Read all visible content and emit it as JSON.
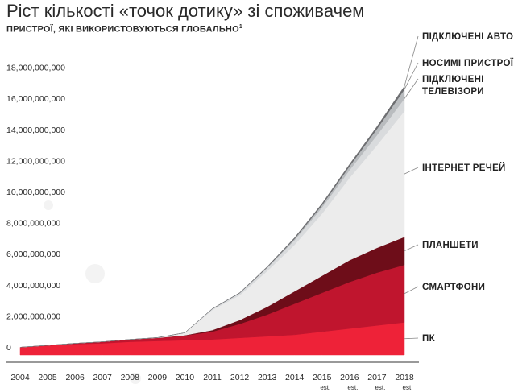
{
  "title": "Ріст кількості «точок дотику» зі споживачем",
  "subtitle": "ПРИСТРОЇ, ЯКІ ВИКОРИСТОВУЮТЬСЯ ГЛОБАЛЬНО",
  "footnote": "1",
  "chart_data": {
    "type": "area",
    "stacked": true,
    "title": "Ріст кількості «точок дотику» зі споживачем",
    "subtitle": "ПРИСТРОЇ, ЯКІ ВИКОРИСТОВУЮТЬСЯ ГЛОБАЛЬНО",
    "x": [
      "2004",
      "2005",
      "2006",
      "2007",
      "2008",
      "2009",
      "2010",
      "2011",
      "2012",
      "2013",
      "2014",
      "2015",
      "2016",
      "2017",
      "2018"
    ],
    "x_notes": [
      "",
      "",
      "",
      "",
      "",
      "",
      "",
      "",
      "",
      "",
      "",
      "est.",
      "est.",
      "est.",
      "est."
    ],
    "ylim": [
      0,
      19000000000
    ],
    "yticks": [
      0,
      2000000000,
      4000000000,
      6000000000,
      8000000000,
      10000000000,
      12000000000,
      14000000000,
      16000000000,
      18000000000
    ],
    "ytick_labels": [
      "0",
      "2,000,000,000",
      "4,000,000,000",
      "6,000,000,000",
      "8,000,000,000",
      "10,000,000,000",
      "12,000,000,000",
      "14,000,000,000",
      "16,000,000,000",
      "18,000,000,000"
    ],
    "series": [
      {
        "name": "ПК",
        "color": "#ee2238",
        "values": [
          500000000,
          600000000,
          700000000,
          750000000,
          850000000,
          900000000,
          950000000,
          1000000000,
          1100000000,
          1200000000,
          1300000000,
          1500000000,
          1700000000,
          1900000000,
          2100000000
        ]
      },
      {
        "name": "СМАРТФОНИ",
        "color": "#c0152e",
        "values": [
          0,
          20000000,
          50000000,
          100000000,
          150000000,
          200000000,
          300000000,
          500000000,
          900000000,
          1400000000,
          2000000000,
          2500000000,
          3000000000,
          3400000000,
          3700000000
        ]
      },
      {
        "name": "ПЛАНШЕТИ",
        "color": "#6e0d19",
        "values": [
          0,
          0,
          0,
          0,
          0,
          0,
          20000000,
          100000000,
          250000000,
          500000000,
          800000000,
          1100000000,
          1400000000,
          1600000000,
          1800000000
        ]
      },
      {
        "name": "ІНТЕРНЕТ РЕЧЕЙ",
        "color": "#ececec",
        "values": [
          0,
          0,
          0,
          0,
          0,
          20000000,
          150000000,
          1300000000,
          1600000000,
          2300000000,
          3000000000,
          4000000000,
          5300000000,
          6600000000,
          8100000000
        ]
      },
      {
        "name": "ПІДКЛЮЧЕНІ ТЕЛЕВІЗОРИ",
        "color": "#d9dbdd",
        "values": [
          0,
          0,
          0,
          0,
          0,
          0,
          10000000,
          60000000,
          120000000,
          200000000,
          300000000,
          400000000,
          500000000,
          650000000,
          800000000
        ]
      },
      {
        "name": "НОСИМІ ПРИСТРОЇ",
        "color": "#b9bcbf",
        "values": [
          0,
          0,
          0,
          0,
          0,
          0,
          0,
          10000000,
          20000000,
          40000000,
          80000000,
          150000000,
          250000000,
          400000000,
          600000000
        ]
      },
      {
        "name": "ПІДКЛЮЧЕНІ АВТО",
        "color": "#6d6e71",
        "values": [
          0,
          0,
          0,
          0,
          0,
          0,
          0,
          10000000,
          20000000,
          40000000,
          70000000,
          100000000,
          120000000,
          150000000,
          200000000
        ]
      }
    ],
    "legend": [
      {
        "lines": [
          "ПІДКЛЮЧЕНІ АВТО"
        ]
      },
      {
        "lines": [
          "НОСИМІ ПРИСТРОЇ"
        ]
      },
      {
        "lines": [
          "ПІДКЛЮЧЕНІ",
          "ТЕЛЕВІЗОРИ"
        ]
      },
      {
        "lines": [
          "ІНТЕРНЕТ РЕЧЕЙ"
        ]
      },
      {
        "lines": [
          "ПЛАНШЕТИ"
        ]
      },
      {
        "lines": [
          "СМАРТФОНИ"
        ]
      },
      {
        "lines": [
          "ПК"
        ]
      }
    ],
    "legend_position": "right",
    "grid": false
  }
}
